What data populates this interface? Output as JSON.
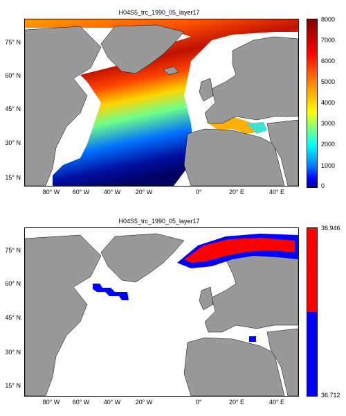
{
  "panels": [
    {
      "title": "H04S5_trc_1990_05_layer17",
      "colorbar": {
        "type": "jet",
        "ticks": [
          "8000",
          "7000",
          "6000",
          "5000",
          "4000",
          "3000",
          "2000",
          "1000",
          "0"
        ],
        "min": 0,
        "max": 8000
      }
    },
    {
      "title": "H04S5_trc_1990_05_layer17",
      "colorbar": {
        "type": "binary",
        "ticks": [
          "36.946",
          "36.712"
        ],
        "upper_color": "#ff0000",
        "lower_color": "#0000ff"
      }
    }
  ],
  "lat_labels": [
    "75° N",
    "60° N",
    "45° N",
    "30° N",
    "15° N"
  ],
  "lon_labels": [
    "80° W",
    "60° W",
    "40° W",
    "20° W",
    "0°",
    "20° E",
    "40° E"
  ],
  "colors": {
    "land": "#999999",
    "ocean_nodata": "#ffffff"
  }
}
